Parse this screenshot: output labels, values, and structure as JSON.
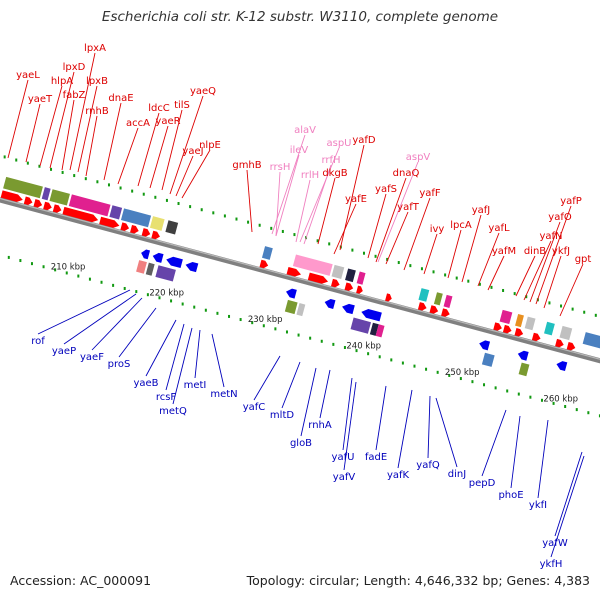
{
  "title": "Escherichia coli str. K-12 substr. W3110, complete genome",
  "footer": {
    "accession": "Accession: AC_000091",
    "topology": "Topology: circular; Length: 4,646,332 bp; Genes: 4,383"
  },
  "colors": {
    "forward_label": "#dd0000",
    "reverse_label": "#0000bb",
    "rna_label": "#f080c0",
    "backbone": "#808080",
    "tick": "#119911"
  },
  "ticks": [
    "210 kbp",
    "220 kbp",
    "230 kbp",
    "240 kbp",
    "250 kbp",
    "260 kbp"
  ],
  "forward_genes": [
    "yaeL",
    "yaeT",
    "hlpA",
    "lpxD",
    "fabZ",
    "lpxA",
    "lpxB",
    "rnhB",
    "dnaE",
    "accA",
    "ldcC",
    "yaeR",
    "tilS",
    "yaeQ",
    "yaeJ",
    "nlpE",
    "gmhB",
    "dkgB",
    "yafD",
    "yafE",
    "yafS",
    "dnaQ",
    "yafT",
    "yafF",
    "ivy",
    "lpcA",
    "yafJ",
    "yafL",
    "yafM",
    "dinB",
    "yafN",
    "yafO",
    "yafP",
    "ykfJ",
    "gpt"
  ],
  "rna_genes": [
    "alaV",
    "ileV",
    "aspU",
    "rrsH",
    "rrfH",
    "rrlH",
    "aspV"
  ],
  "reverse_genes": [
    "rof",
    "yaeP",
    "yaeF",
    "proS",
    "yaeB",
    "rcsF",
    "metQ",
    "metI",
    "metN",
    "yafC",
    "mltD",
    "gloB",
    "rnhA",
    "yafU",
    "yafV",
    "fadE",
    "yafK",
    "yafQ",
    "dinJ",
    "pepD",
    "phoE",
    "ykfI",
    "yafW",
    "ykfH"
  ]
}
